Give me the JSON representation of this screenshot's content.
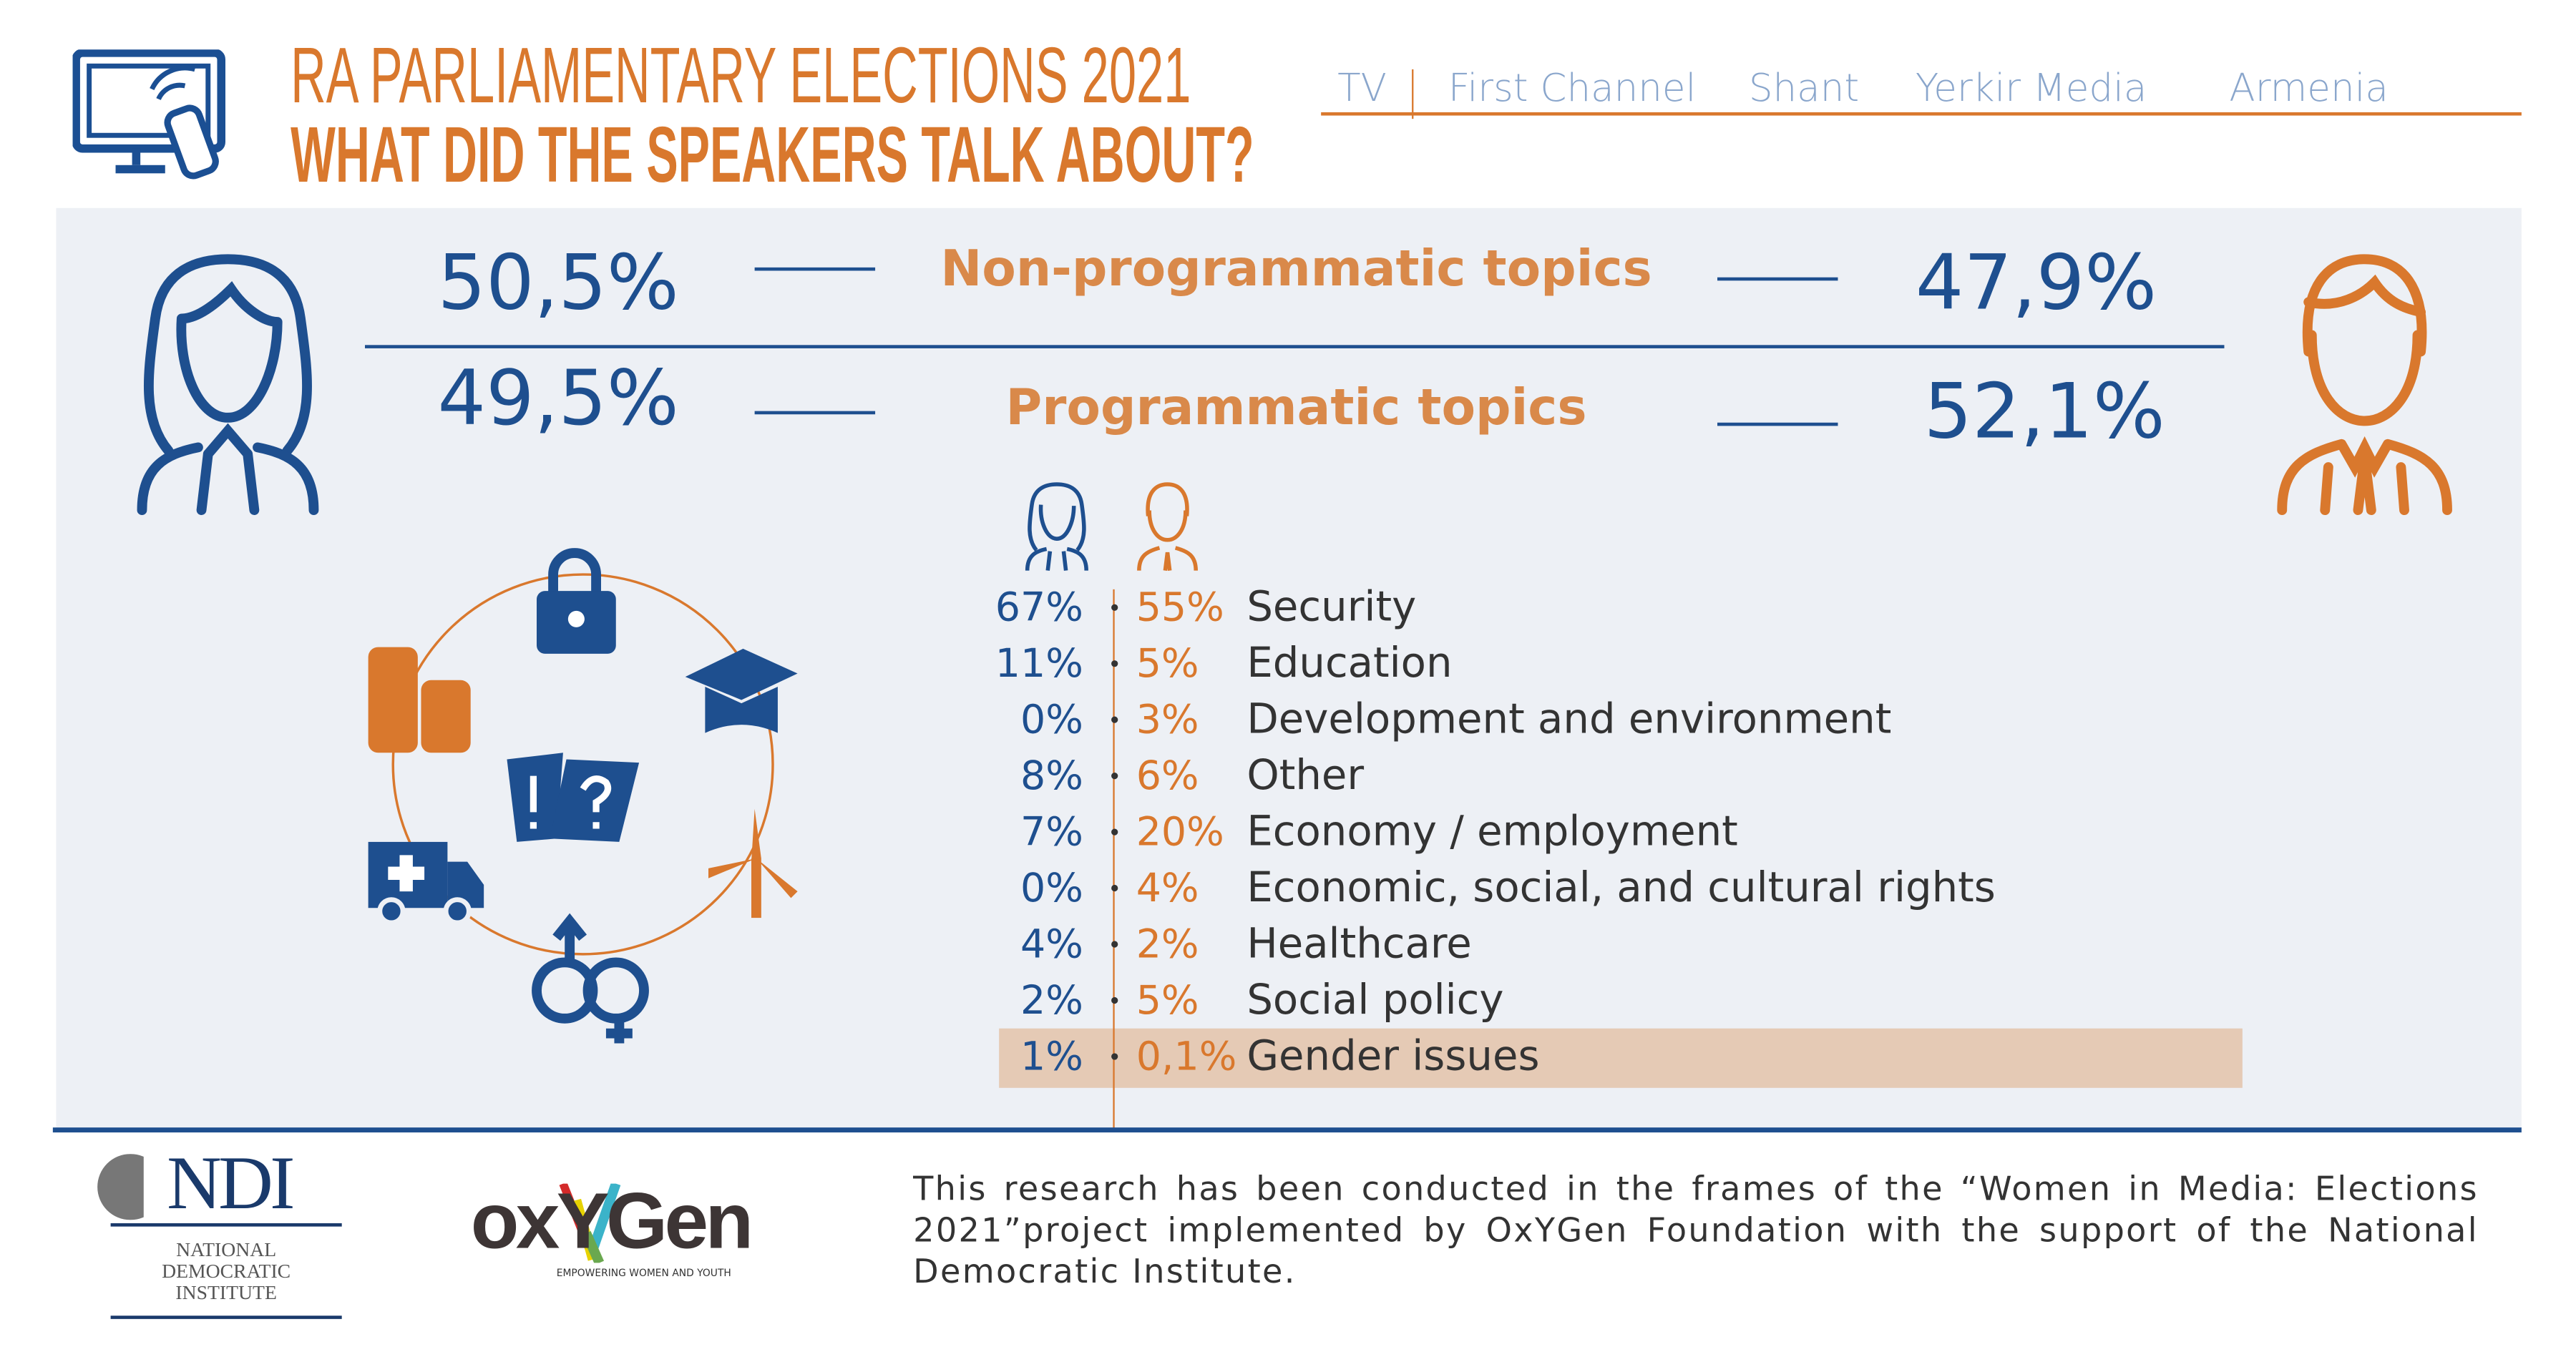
{
  "header": {
    "title_line1": "RA PARLIAMENTARY ELECTIONS 2021",
    "title_line2": "WHAT DID THE SPEAKERS TALK ABOUT?",
    "media_type": "TV",
    "channels": [
      "First Channel",
      "Shant",
      "Yerkir Media",
      "Armenia"
    ]
  },
  "summary": {
    "non_programmatic": {
      "label": "Non-programmatic topics",
      "women": "50,5%",
      "men": "47,9%"
    },
    "programmatic": {
      "label": "Programmatic topics",
      "women": "49,5%",
      "men": "52,1%"
    }
  },
  "topics": [
    {
      "women": "67%",
      "men": "55%",
      "label": "Security"
    },
    {
      "women": "11%",
      "men": "5%",
      "label": "Education"
    },
    {
      "women": "0%",
      "men": "3%",
      "label": "Development and environment"
    },
    {
      "women": "8%",
      "men": "6%",
      "label": "Other"
    },
    {
      "women": "7%",
      "men": "20%",
      "label": "Economy / employment"
    },
    {
      "women": "0%",
      "men": "4%",
      "label": "Economic, social, and cultural rights"
    },
    {
      "women": "4%",
      "men": "2%",
      "label": "Healthcare"
    },
    {
      "women": "2%",
      "men": "5%",
      "label": "Social policy"
    },
    {
      "women": "1%",
      "men": "0,1%",
      "label": "Gender issues",
      "highlighted": true
    }
  ],
  "footer": {
    "text": "This research has been conducted in the frames of the “Women in Media: Elections 2021”project implemented by OxYGen Foundation with the support of the National Democratic Institute.",
    "ndi_logo": {
      "abbr": "NDI",
      "line1": "NATIONAL",
      "line2": "DEMOCRATIC",
      "line3": "INSTITUTE"
    },
    "oxygen_logo": {
      "name": "oxYGen",
      "tagline": "EMPOWERING WOMEN AND YOUTH"
    }
  },
  "colors": {
    "orange": "#d9782d",
    "blue": "#1e4f8f",
    "panel": "#edf0f5",
    "highlight": "#e5cab5",
    "channel": "#8aa6cc"
  }
}
